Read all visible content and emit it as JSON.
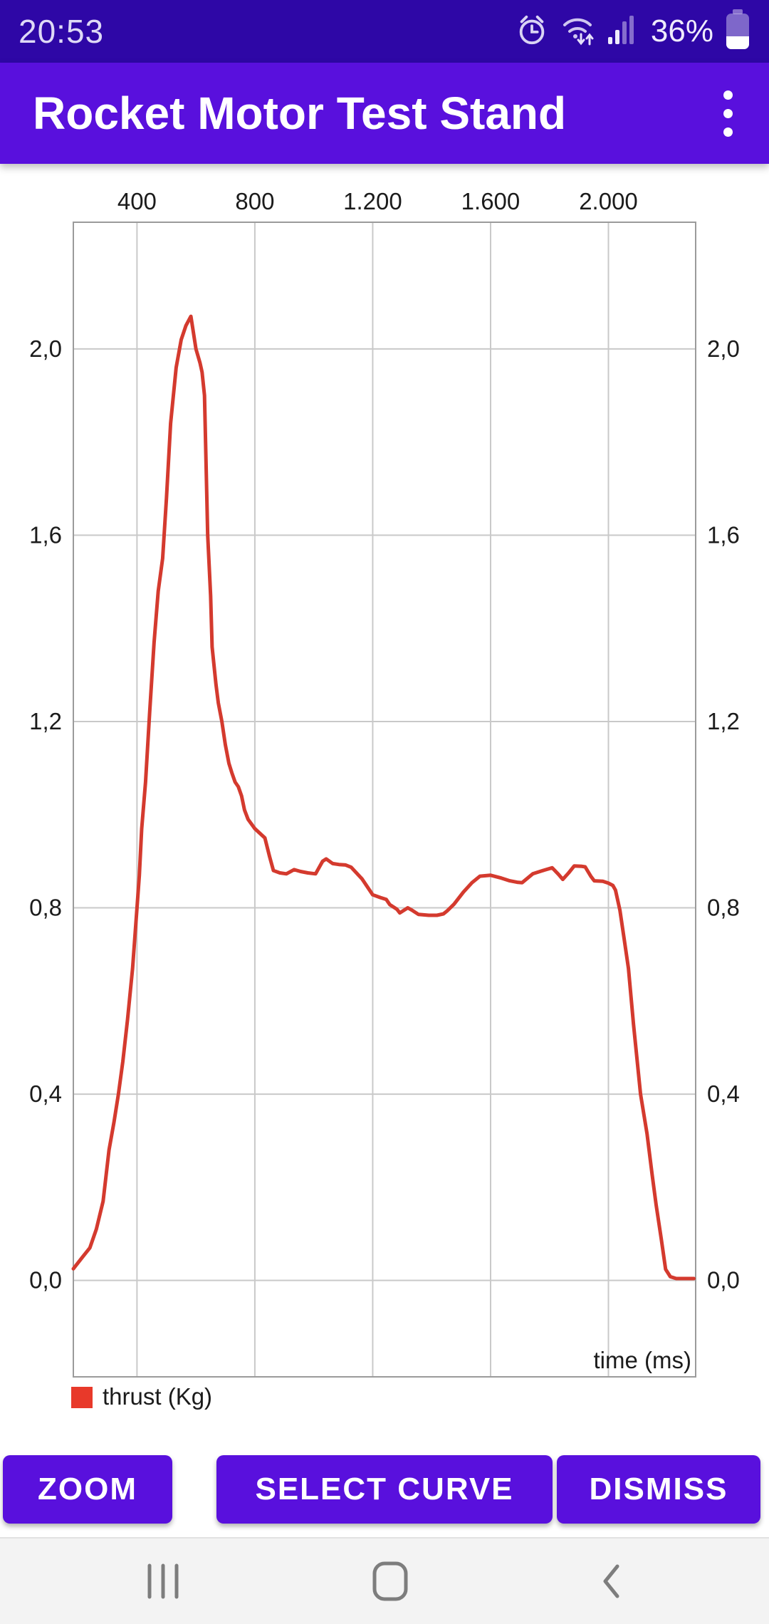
{
  "status_bar": {
    "time": "20:53",
    "battery_percent": "36%",
    "icons": [
      "alarm-icon",
      "wifi-arrows-icon",
      "signal-strength-icon",
      "battery-icon"
    ]
  },
  "app_bar": {
    "title": "Rocket Motor Test Stand",
    "menu_icon": "more-vert-icon"
  },
  "chart_data": {
    "type": "line",
    "title": "",
    "xlabel": "time (ms)",
    "ylabel": "thrust (Kg)",
    "grid": true,
    "grid_color": "#c9c9c9",
    "border_color": "#9b9b9b",
    "axis_text_color": "#1b1b1b",
    "legend": {
      "label": "thrust (Kg)",
      "swatch_color": "#e8392a",
      "position": "bottom-left"
    },
    "xlim": [
      184,
      2296
    ],
    "ylim": [
      -0.207,
      2.272
    ],
    "x_ticks": [
      {
        "value": 400,
        "label": "400"
      },
      {
        "value": 800,
        "label": "800"
      },
      {
        "value": 1200,
        "label": "1.200"
      },
      {
        "value": 1600,
        "label": "1.600"
      },
      {
        "value": 2000,
        "label": "2.000"
      }
    ],
    "y_ticks": [
      {
        "value": 0.0,
        "label": "0,0"
      },
      {
        "value": 0.4,
        "label": "0,4"
      },
      {
        "value": 0.8,
        "label": "0,8"
      },
      {
        "value": 1.2,
        "label": "1,2"
      },
      {
        "value": 1.6,
        "label": "1,6"
      },
      {
        "value": 2.0,
        "label": "2,0"
      }
    ],
    "y_ticks_mirrored_right": true,
    "series": [
      {
        "name": "thrust (Kg)",
        "color": "#d43a2e",
        "points": [
          [
            184,
            0.025
          ],
          [
            215,
            0.05
          ],
          [
            240,
            0.07
          ],
          [
            262,
            0.11
          ],
          [
            285,
            0.17
          ],
          [
            305,
            0.28
          ],
          [
            322,
            0.34
          ],
          [
            337,
            0.4
          ],
          [
            352,
            0.47
          ],
          [
            368,
            0.56
          ],
          [
            385,
            0.67
          ],
          [
            400,
            0.8
          ],
          [
            408,
            0.87
          ],
          [
            416,
            0.97
          ],
          [
            429,
            1.07
          ],
          [
            443,
            1.22
          ],
          [
            458,
            1.37
          ],
          [
            472,
            1.48
          ],
          [
            487,
            1.55
          ],
          [
            500,
            1.68
          ],
          [
            514,
            1.84
          ],
          [
            533,
            1.96
          ],
          [
            550,
            2.02
          ],
          [
            566,
            2.05
          ],
          [
            583,
            2.07
          ],
          [
            600,
            2.0
          ],
          [
            614,
            1.97
          ],
          [
            621,
            1.95
          ],
          [
            629,
            1.9
          ],
          [
            640,
            1.6
          ],
          [
            650,
            1.47
          ],
          [
            655,
            1.36
          ],
          [
            668,
            1.28
          ],
          [
            676,
            1.24
          ],
          [
            688,
            1.2
          ],
          [
            700,
            1.15
          ],
          [
            712,
            1.11
          ],
          [
            722,
            1.09
          ],
          [
            733,
            1.07
          ],
          [
            744,
            1.06
          ],
          [
            755,
            1.04
          ],
          [
            765,
            1.01
          ],
          [
            777,
            0.99
          ],
          [
            800,
            0.97
          ],
          [
            834,
            0.95
          ],
          [
            850,
            0.91
          ],
          [
            863,
            0.88
          ],
          [
            885,
            0.875
          ],
          [
            907,
            0.873
          ],
          [
            933,
            0.882
          ],
          [
            955,
            0.878
          ],
          [
            980,
            0.875
          ],
          [
            1006,
            0.873
          ],
          [
            1030,
            0.9
          ],
          [
            1042,
            0.905
          ],
          [
            1064,
            0.895
          ],
          [
            1085,
            0.893
          ],
          [
            1108,
            0.892
          ],
          [
            1127,
            0.887
          ],
          [
            1164,
            0.862
          ],
          [
            1200,
            0.828
          ],
          [
            1226,
            0.822
          ],
          [
            1246,
            0.818
          ],
          [
            1258,
            0.807
          ],
          [
            1282,
            0.797
          ],
          [
            1292,
            0.789
          ],
          [
            1319,
            0.8
          ],
          [
            1333,
            0.795
          ],
          [
            1355,
            0.786
          ],
          [
            1390,
            0.784
          ],
          [
            1418,
            0.784
          ],
          [
            1440,
            0.787
          ],
          [
            1452,
            0.793
          ],
          [
            1476,
            0.808
          ],
          [
            1508,
            0.834
          ],
          [
            1537,
            0.854
          ],
          [
            1564,
            0.868
          ],
          [
            1600,
            0.87
          ],
          [
            1636,
            0.864
          ],
          [
            1665,
            0.858
          ],
          [
            1690,
            0.855
          ],
          [
            1707,
            0.854
          ],
          [
            1743,
            0.873
          ],
          [
            1782,
            0.881
          ],
          [
            1809,
            0.886
          ],
          [
            1830,
            0.872
          ],
          [
            1845,
            0.861
          ],
          [
            1865,
            0.875
          ],
          [
            1884,
            0.89
          ],
          [
            1910,
            0.889
          ],
          [
            1921,
            0.888
          ],
          [
            1940,
            0.868
          ],
          [
            1952,
            0.858
          ],
          [
            1981,
            0.857
          ],
          [
            2000,
            0.853
          ],
          [
            2015,
            0.848
          ],
          [
            2024,
            0.838
          ],
          [
            2039,
            0.795
          ],
          [
            2053,
            0.735
          ],
          [
            2068,
            0.67
          ],
          [
            2085,
            0.55
          ],
          [
            2109,
            0.4
          ],
          [
            2131,
            0.315
          ],
          [
            2148,
            0.228
          ],
          [
            2162,
            0.162
          ],
          [
            2179,
            0.09
          ],
          [
            2194,
            0.024
          ],
          [
            2210,
            0.008
          ],
          [
            2230,
            0.004
          ],
          [
            2260,
            0.004
          ],
          [
            2290,
            0.004
          ]
        ]
      }
    ]
  },
  "buttons": [
    {
      "label": "ZOOM"
    },
    {
      "label": "SELECT CURVE"
    },
    {
      "label": "DISMISS"
    }
  ],
  "nav_bar": {
    "icons": [
      "recents-icon",
      "home-icon",
      "back-icon"
    ]
  },
  "colors": {
    "status_bar_bg": "#2e07a6",
    "app_bar_bg": "#5910dd",
    "button_bg": "#5910dd",
    "nav_bar_bg": "#f3f3f3",
    "nav_icon": "#7d7d7d",
    "curve_red": "#d43a2e"
  }
}
